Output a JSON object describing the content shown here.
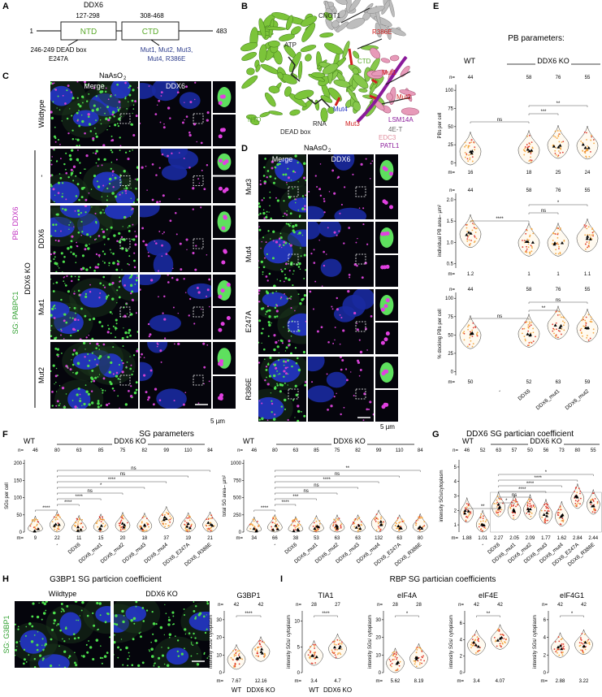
{
  "letters": [
    "A",
    "B",
    "C",
    "D",
    "E",
    "F",
    "G",
    "H",
    "I"
  ],
  "domain": {
    "title": "DDX6",
    "start": "1",
    "ntd_range": "127-298",
    "ctd_range": "308-468",
    "end": "483",
    "ntd": "NTD",
    "ctd": "CTD",
    "dead_box": "246-249 DEAD box",
    "e247a": "E247A",
    "mutants": [
      "Mut1, Mut2, Mut3,",
      "Mut4, R386E"
    ]
  },
  "structure": [
    "CNOT1",
    "R386E",
    "CTD",
    "Mut1",
    "Mut2",
    "ATP",
    "NTD",
    "RNA",
    "Mut4",
    "DEAD box",
    "Mut3",
    "LSM14A",
    "4E-T",
    "EDC3",
    "PATL1"
  ],
  "micro_c": {
    "treatment": "NaAsO",
    "treatment_sub": "2",
    "columns": [
      "Merge",
      "DDX6"
    ],
    "rows": [
      "Wildtype",
      "-",
      "DDX6",
      "Mut1",
      "Mut2"
    ],
    "stain_sg": "SG: PABPC1",
    "stain_pb": "PB: DDX6",
    "group": "DDX6 KO",
    "scale": "5 µm"
  },
  "micro_d": {
    "treatment": "NaAsO",
    "treatment_sub": "2",
    "columns": [
      "Merge",
      "DDX6"
    ],
    "rows": [
      "Mut3",
      "Mut4",
      "E247A",
      "R386E"
    ],
    "scale": "5 µm"
  },
  "pb": {
    "title": "PB parameters:",
    "wt": "WT",
    "ko": "DDX6 KO",
    "n_label": "n=",
    "m_label": "m=",
    "n": [
      44,
      58,
      76,
      55
    ],
    "categories": [
      "-",
      "DDX6",
      "DDX6_mut1",
      "DDX6_mut2"
    ],
    "plots": [
      {
        "ylabel": "PBs per cell",
        "ylim": [
          -5,
          108
        ],
        "yticks": [
          0,
          25,
          50,
          75,
          100
        ],
        "m": [
          16,
          18,
          25,
          24
        ],
        "sig": [
          "ns",
          "***",
          "**"
        ]
      },
      {
        "ylabel": "individual PB area– µm²",
        "ylim": [
          0.4,
          2.15
        ],
        "yticks": [
          0.5,
          {
            "value": 1,
            "label": "1.0"
          },
          1.5,
          {
            "value": 2,
            "label": "2.0"
          }
        ],
        "m": [
          1.2,
          1,
          1,
          1.1
        ],
        "sig": [
          "****",
          "ns",
          "*"
        ]
      },
      {
        "ylabel": "% docking PBs per cell",
        "ylim": [
          -5,
          108
        ],
        "yticks": [
          0,
          25,
          50,
          75,
          100
        ],
        "m": [
          50,
          52,
          63,
          59
        ],
        "sig": [
          "ns",
          "**",
          "ns"
        ]
      }
    ]
  },
  "sg": {
    "title": "SG parameters",
    "n_label": "n=",
    "m_label": "m=",
    "categories": [
      "-",
      "DDX6",
      "DDX6_mut1",
      "DDX6_mut2",
      "DDX6_mut3",
      "DDX6_mut4",
      "DDX6_E247A",
      "DDX6_R386E"
    ],
    "plots": [
      {
        "wt": "WT",
        "ko": "DDX6 KO",
        "ylabel": "SGs per cell",
        "ylim": [
          0,
          210
        ],
        "yticks": [
          0,
          50,
          100,
          150,
          200
        ],
        "n": [
          46,
          80,
          63,
          85,
          75,
          82,
          99,
          110,
          84
        ],
        "m": [
          9,
          22,
          11,
          15,
          20,
          18,
          37,
          19,
          21
        ],
        "sig": [
          "****",
          "****",
          "****",
          "ns",
          "*",
          "****",
          "ns",
          "ns"
        ]
      },
      {
        "wt": "WT",
        "ko": "DDX6 KO",
        "ylabel": "total SG area– µm²",
        "ylim": [
          0,
          1050
        ],
        "yticks": [
          0,
          250,
          500,
          750,
          1000
        ],
        "n": [
          46,
          80,
          63,
          85,
          75,
          82,
          99,
          110,
          84
        ],
        "m": [
          34,
          66,
          38,
          53,
          63,
          63,
          132,
          63,
          80
        ],
        "sig": [
          "****",
          "****",
          "***",
          "ns",
          "ns",
          "****",
          "ns",
          "**"
        ]
      }
    ]
  },
  "g": {
    "title": "DDX6 SG partician coefficient",
    "wt": "WT",
    "ko": "DDX6 KO",
    "n_label": "n=",
    "m_label": "m=",
    "ylabel": "intensity SGs/cytoplasm",
    "ylim": [
      0.5,
      5.5
    ],
    "yticks": [
      1,
      2,
      3,
      4,
      5
    ],
    "n": [
      46,
      52,
      63,
      57,
      50,
      56,
      73,
      80,
      55
    ],
    "m": [
      1.88,
      1.01,
      2.27,
      2.05,
      2.09,
      1.77,
      1.62,
      2.84,
      2.44
    ],
    "categories": [
      "-",
      "DDX6",
      "DDX6_mut1",
      "DDX6_mut2",
      "DDX6_mut3",
      "DDX6_mut4",
      "DDX6_E247A",
      "DDX6_R386E"
    ],
    "sig": [
      "**",
      "*",
      "ns",
      "****",
      "****",
      "****",
      "*"
    ]
  },
  "h": {
    "title": "G3BP1 SG particion coefficient",
    "images": [
      "Wildtype",
      "DDX6 KO"
    ],
    "stain": "SG: G3BP1",
    "n_label": "n=",
    "m_label": "m=",
    "plot": {
      "title": "G3BP1",
      "ylabel": "intensity SGs/ cytoplasm",
      "ylim": [
        0,
        35
      ],
      "yticks": [
        0,
        10,
        20,
        30
      ],
      "n": [
        42,
        42
      ],
      "m": [
        7.67,
        12.16
      ],
      "sig": [
        "****"
      ],
      "categories": [
        "WT",
        "DDX6 KO"
      ]
    }
  },
  "i": {
    "title": "RBP SG partician coefficients",
    "n_label": "n=",
    "m_label": "m=",
    "categories": [
      "WT",
      "DDX6 KO"
    ],
    "plots": [
      {
        "title": "TIA1",
        "ylabel": "intensity SGs/ cytoplasm",
        "ylim": [
          0,
          12
        ],
        "yticks": [
          0,
          5,
          10
        ],
        "n": [
          28,
          27
        ],
        "m": [
          3.4,
          4.7
        ],
        "sig": [
          "****"
        ]
      },
      {
        "title": "eIF4A",
        "ylabel": "intensity SGs/ cytoplasm",
        "ylim": [
          0,
          35
        ],
        "yticks": [
          0,
          10,
          20,
          30
        ],
        "n": [
          28,
          28
        ],
        "m": [
          5.62,
          8.19
        ],
        "sig": [
          "*"
        ]
      },
      {
        "title": "eIF4E",
        "ylabel": "intensity SGs/ cytoplasm",
        "ylim": [
          0,
          7.5
        ],
        "yticks": [
          0,
          2,
          4,
          6
        ],
        "n": [
          42,
          42
        ],
        "m": [
          3.4,
          4.07
        ],
        "sig": [
          "**"
        ]
      },
      {
        "title": "eIF4G1",
        "ylabel": "intensity SGs/ cytoplasm",
        "ylim": [
          0,
          7
        ],
        "yticks": [
          0,
          2,
          4,
          6
        ],
        "n": [
          42,
          42
        ],
        "m": [
          2.88,
          3.22
        ],
        "sig": [
          "*"
        ]
      }
    ]
  }
}
